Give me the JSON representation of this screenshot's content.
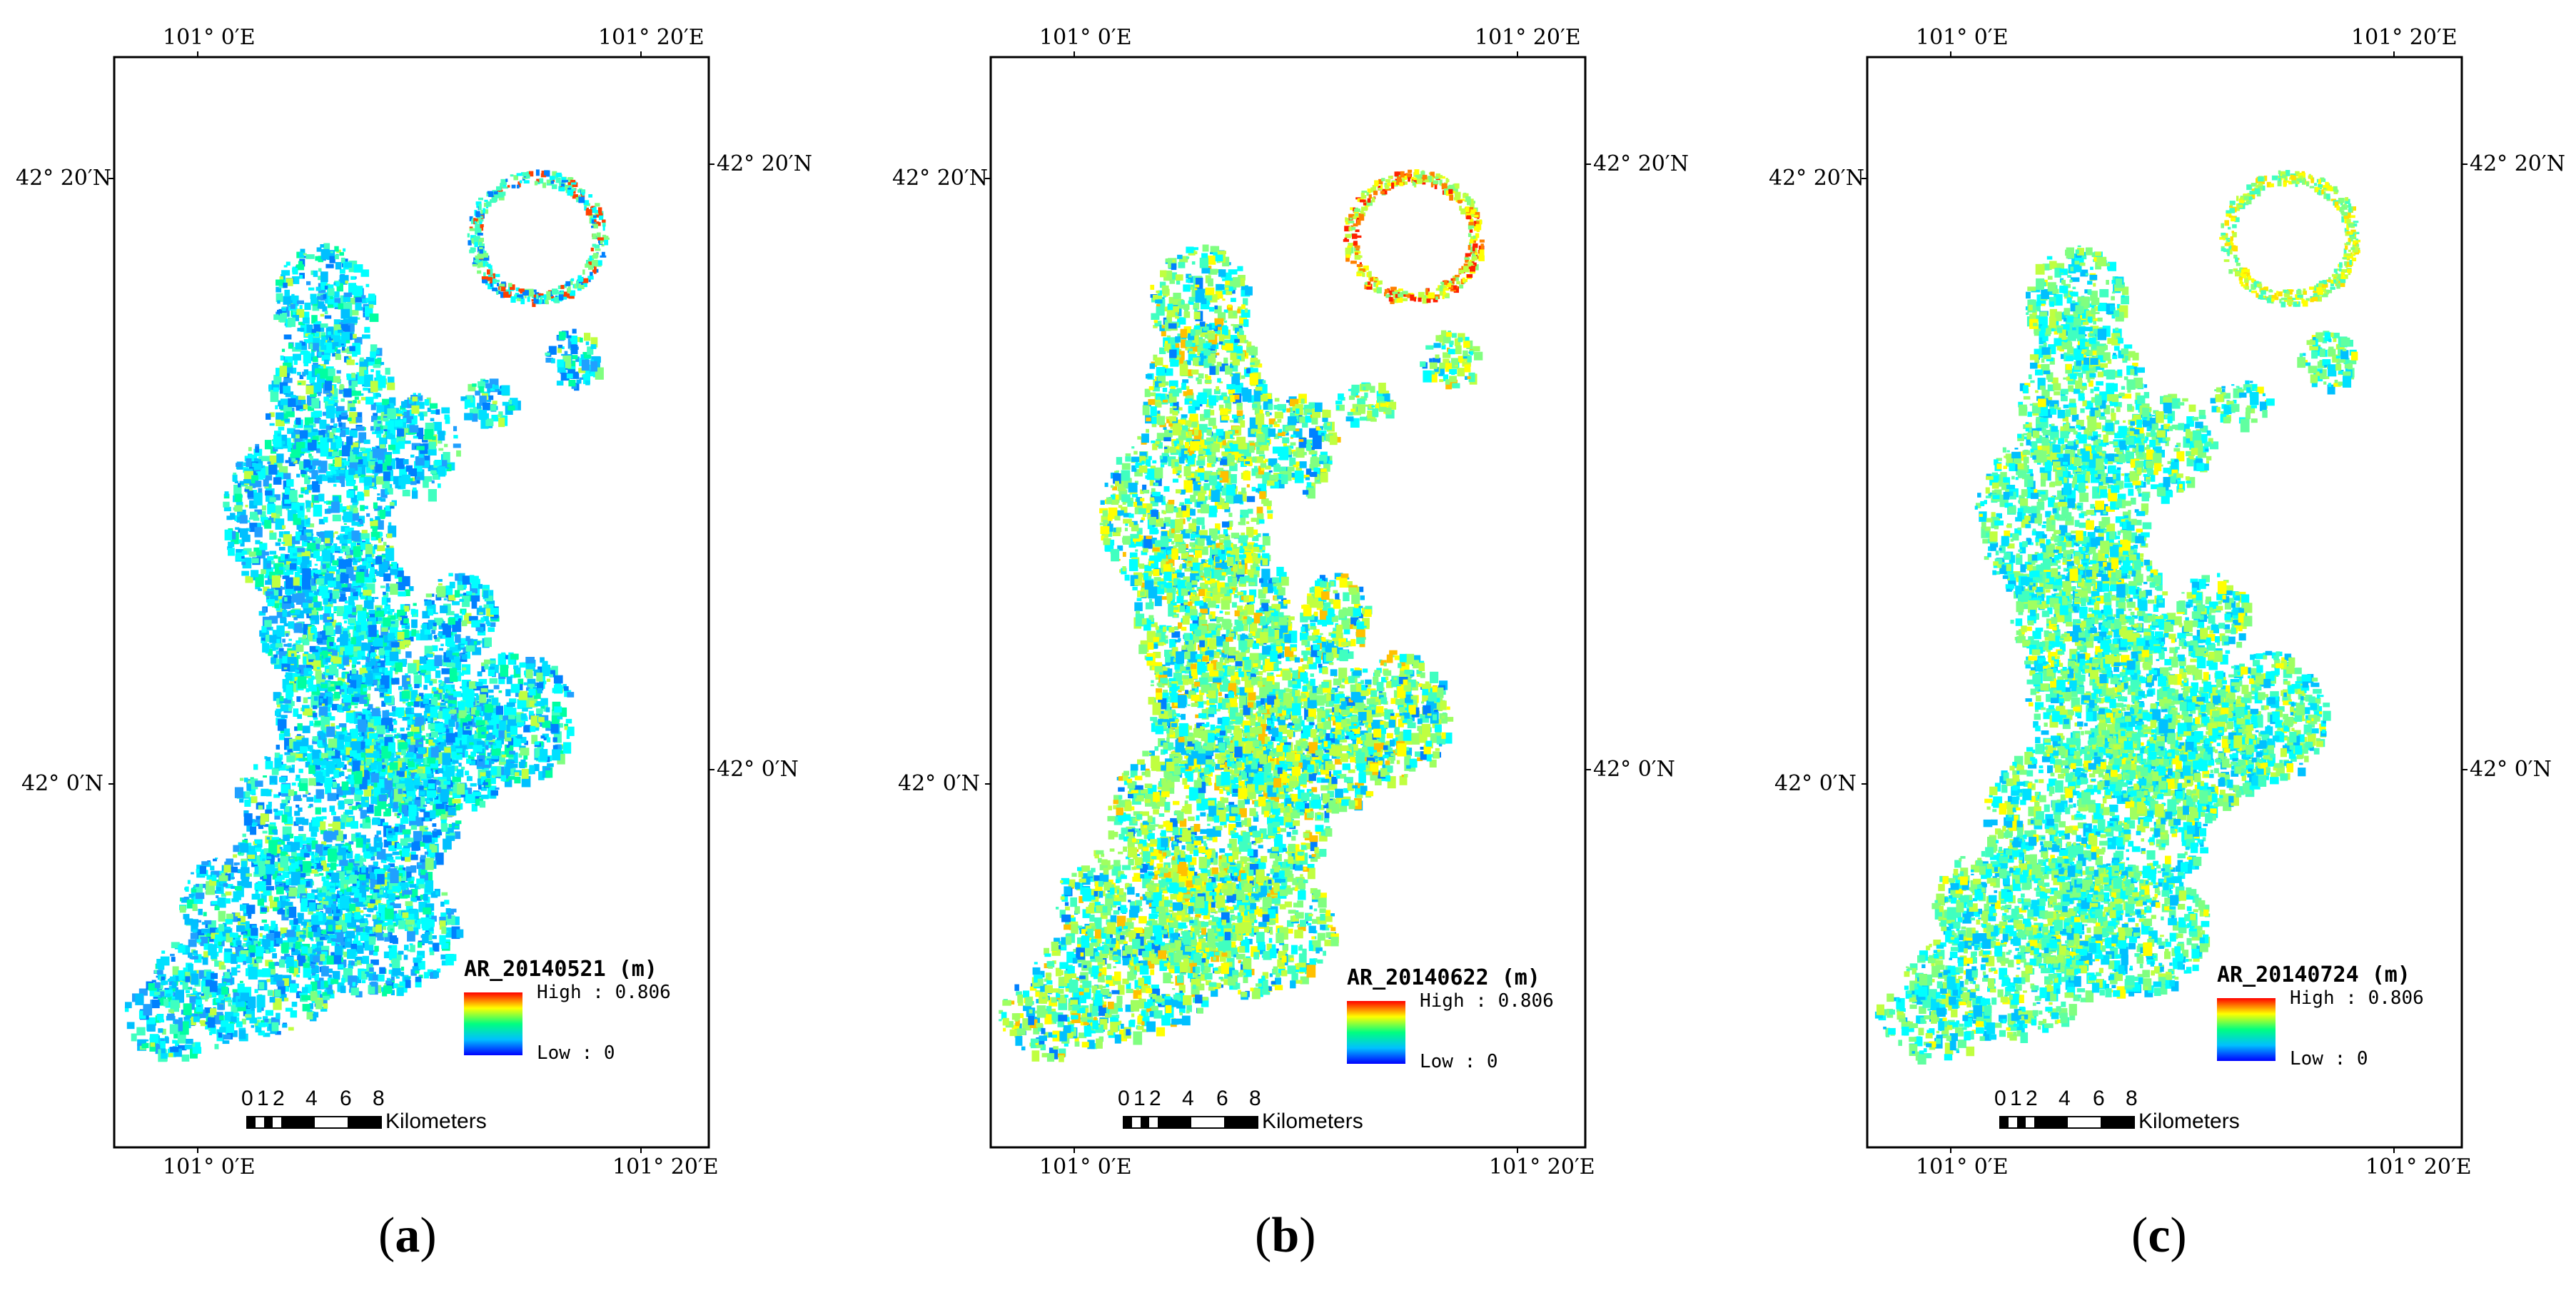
{
  "panels": [
    {
      "id": "a",
      "legend_title": "AR_20140521 (m)",
      "variant": 0
    },
    {
      "id": "b",
      "legend_title": "AR_20140622 (m)",
      "variant": 1
    },
    {
      "id": "c",
      "legend_title": "AR_20140724 (m)",
      "variant": 2
    }
  ],
  "coords": {
    "top_left": "101° 0′E",
    "top_right": "101° 20′E",
    "bottom_left": "101° 0′E",
    "bottom_right": "101° 20′E",
    "left_upper": "42° 20′N",
    "left_lower": "42° 0′N",
    "right_upper": "42° 20′N",
    "right_lower": "42° 0′N"
  },
  "legend": {
    "high": "High : 0.806",
    "low": "Low : 0",
    "colors": [
      "#ff0000",
      "#ff8000",
      "#ffff00",
      "#80ff00",
      "#00ff80",
      "#00ffff",
      "#0080ff",
      "#0000ff"
    ]
  },
  "scale": {
    "ticks": [
      "0",
      "1",
      "2",
      "4",
      "6",
      "8"
    ],
    "unit": "Kilometers"
  },
  "labels": {
    "open": "(",
    "close": ")"
  }
}
